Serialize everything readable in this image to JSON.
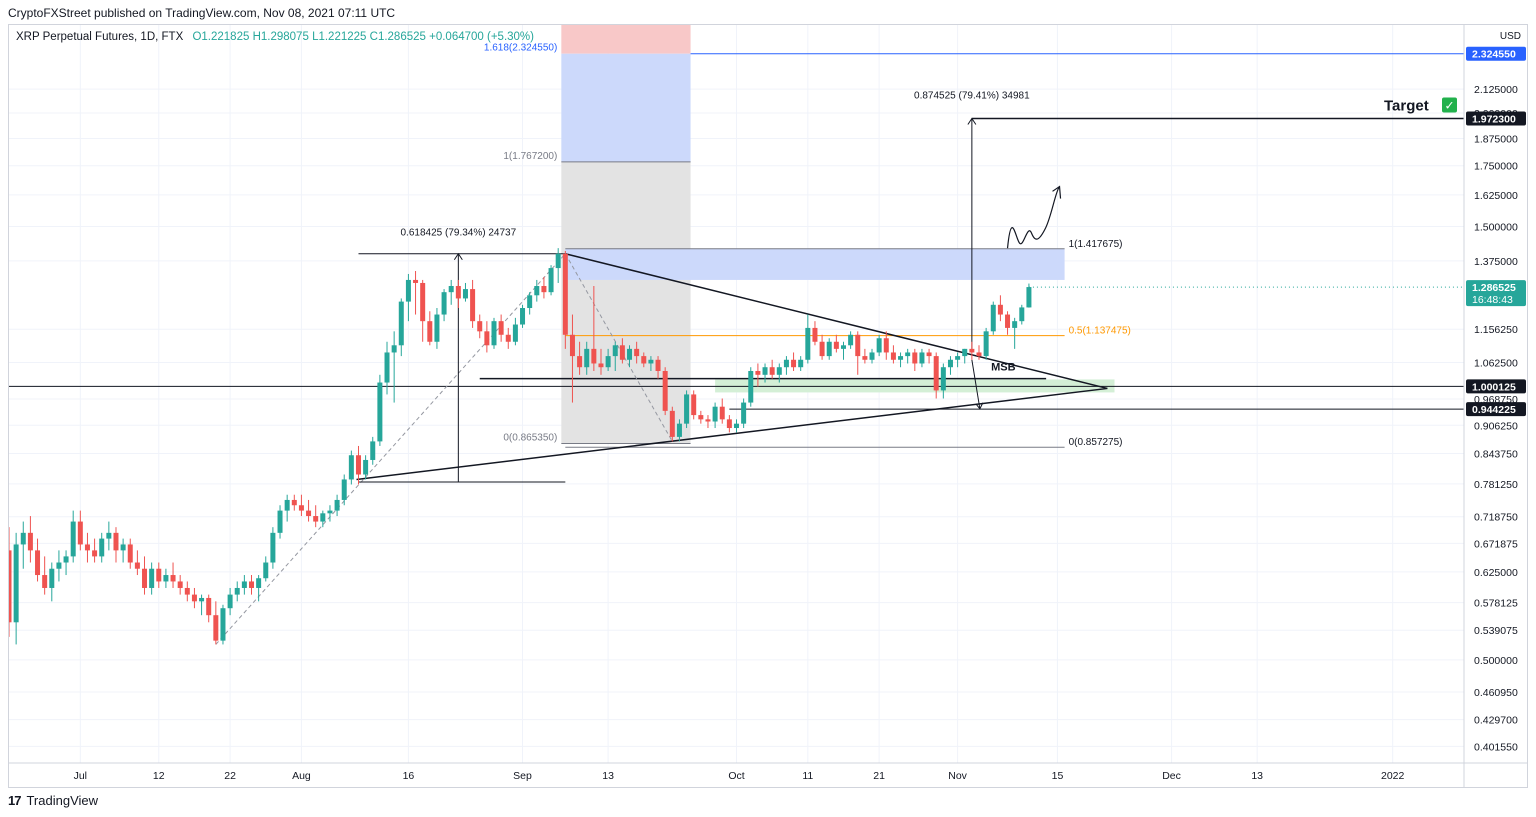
{
  "header": {
    "publisher_line": "CryptoFXStreet published on TradingView.com, Nov 08, 2021 07:11 UTC"
  },
  "legend": {
    "symbol": "XRP Perpetual Futures, 1D, FTX",
    "open": "O1.221825",
    "high": "H1.298075",
    "low": "L1.221225",
    "close": "C1.286525",
    "change": "+0.064700 (+5.30%)"
  },
  "footer": {
    "brand": "TradingView",
    "logo_mark": "17"
  },
  "chart_data": {
    "type": "candlestick",
    "currency": "USD",
    "y_scale": "log",
    "ylim": [
      0.385,
      2.5
    ],
    "x_range": [
      "2021-06-21",
      "2022-01-11"
    ],
    "x_ticks": [
      {
        "date": "2021-07-01",
        "label": "Jul"
      },
      {
        "date": "2021-07-12",
        "label": "12"
      },
      {
        "date": "2021-07-22",
        "label": "22"
      },
      {
        "date": "2021-08-01",
        "label": "Aug"
      },
      {
        "date": "2021-08-16",
        "label": "16"
      },
      {
        "date": "2021-09-01",
        "label": "Sep"
      },
      {
        "date": "2021-09-13",
        "label": "13"
      },
      {
        "date": "2021-10-01",
        "label": "Oct"
      },
      {
        "date": "2021-10-11",
        "label": "11"
      },
      {
        "date": "2021-10-21",
        "label": "21"
      },
      {
        "date": "2021-11-01",
        "label": "Nov"
      },
      {
        "date": "2021-11-15",
        "label": "15"
      },
      {
        "date": "2021-12-01",
        "label": "Dec"
      },
      {
        "date": "2021-12-13",
        "label": "13"
      },
      {
        "date": "2022-01-01",
        "label": "2022"
      }
    ],
    "y_ticks": [
      "2.125000",
      "2.000000",
      "1.875000",
      "1.750000",
      "1.625000",
      "1.500000",
      "1.375000",
      "1.156250",
      "1.062500",
      "0.968750",
      "0.906250",
      "0.843750",
      "0.781250",
      "0.718750",
      "0.671875",
      "0.625000",
      "0.578125",
      "0.539075",
      "0.500000",
      "0.460950",
      "0.429700",
      "0.401550"
    ],
    "y_tick_values": [
      2.125,
      2.0,
      1.875,
      1.75,
      1.625,
      1.5,
      1.375,
      1.15625,
      1.0625,
      0.96875,
      0.90625,
      0.84375,
      0.78125,
      0.71875,
      0.671875,
      0.625,
      0.578125,
      0.539075,
      0.5,
      0.46095,
      0.4297,
      0.40155
    ],
    "price_labels": [
      {
        "value": 2.32455,
        "label": "2.324550",
        "style": "blue"
      },
      {
        "value": 1.9723,
        "label": "1.972300",
        "style": "dark"
      },
      {
        "value": 1.000125,
        "label": "1.000125",
        "style": "dark"
      },
      {
        "value": 0.944225,
        "label": "0.944225",
        "style": "dark"
      },
      {
        "value": 1.286525,
        "label": "1.286525",
        "sublabel": "16:48:43",
        "style": "green"
      }
    ],
    "candles": {
      "start_date": "2021-06-21",
      "columns": [
        "o",
        "h",
        "l",
        "c"
      ],
      "rows": [
        [
          0.66,
          0.7,
          0.53,
          0.55
        ],
        [
          0.55,
          0.69,
          0.52,
          0.67
        ],
        [
          0.67,
          0.71,
          0.63,
          0.69
        ],
        [
          0.69,
          0.72,
          0.64,
          0.66
        ],
        [
          0.66,
          0.68,
          0.61,
          0.62
        ],
        [
          0.62,
          0.65,
          0.59,
          0.6
        ],
        [
          0.6,
          0.64,
          0.58,
          0.63
        ],
        [
          0.63,
          0.66,
          0.61,
          0.64
        ],
        [
          0.64,
          0.66,
          0.62,
          0.65
        ],
        [
          0.65,
          0.73,
          0.64,
          0.71
        ],
        [
          0.71,
          0.73,
          0.66,
          0.67
        ],
        [
          0.67,
          0.69,
          0.64,
          0.66
        ],
        [
          0.66,
          0.68,
          0.64,
          0.65
        ],
        [
          0.65,
          0.69,
          0.64,
          0.68
        ],
        [
          0.68,
          0.71,
          0.66,
          0.69
        ],
        [
          0.69,
          0.7,
          0.64,
          0.66
        ],
        [
          0.66,
          0.68,
          0.64,
          0.67
        ],
        [
          0.67,
          0.68,
          0.63,
          0.64
        ],
        [
          0.64,
          0.66,
          0.62,
          0.63
        ],
        [
          0.63,
          0.65,
          0.59,
          0.6
        ],
        [
          0.6,
          0.64,
          0.59,
          0.63
        ],
        [
          0.63,
          0.64,
          0.6,
          0.61
        ],
        [
          0.61,
          0.63,
          0.6,
          0.62
        ],
        [
          0.62,
          0.64,
          0.6,
          0.61
        ],
        [
          0.61,
          0.62,
          0.59,
          0.6
        ],
        [
          0.6,
          0.61,
          0.58,
          0.59
        ],
        [
          0.59,
          0.6,
          0.57,
          0.58
        ],
        [
          0.58,
          0.59,
          0.56,
          0.585
        ],
        [
          0.585,
          0.59,
          0.55,
          0.56
        ],
        [
          0.56,
          0.58,
          0.52,
          0.525
        ],
        [
          0.525,
          0.575,
          0.52,
          0.57
        ],
        [
          0.57,
          0.6,
          0.56,
          0.59
        ],
        [
          0.59,
          0.61,
          0.58,
          0.6
        ],
        [
          0.6,
          0.62,
          0.59,
          0.61
        ],
        [
          0.61,
          0.62,
          0.59,
          0.6
        ],
        [
          0.6,
          0.62,
          0.58,
          0.615
        ],
        [
          0.615,
          0.65,
          0.61,
          0.64
        ],
        [
          0.64,
          0.7,
          0.63,
          0.69
        ],
        [
          0.69,
          0.74,
          0.68,
          0.73
        ],
        [
          0.73,
          0.76,
          0.71,
          0.75
        ],
        [
          0.75,
          0.76,
          0.73,
          0.74
        ],
        [
          0.74,
          0.76,
          0.72,
          0.73
        ],
        [
          0.73,
          0.75,
          0.71,
          0.72
        ],
        [
          0.72,
          0.74,
          0.7,
          0.71
        ],
        [
          0.71,
          0.73,
          0.7,
          0.725
        ],
        [
          0.725,
          0.74,
          0.71,
          0.73
        ],
        [
          0.73,
          0.76,
          0.72,
          0.75
        ],
        [
          0.75,
          0.8,
          0.74,
          0.79
        ],
        [
          0.79,
          0.85,
          0.78,
          0.84
        ],
        [
          0.84,
          0.86,
          0.78,
          0.8
        ],
        [
          0.8,
          0.84,
          0.79,
          0.83
        ],
        [
          0.83,
          0.88,
          0.82,
          0.87
        ],
        [
          0.87,
          1.03,
          0.86,
          1.01
        ],
        [
          1.01,
          1.12,
          0.98,
          1.09
        ],
        [
          1.09,
          1.15,
          0.96,
          1.11
        ],
        [
          1.11,
          1.25,
          1.08,
          1.24
        ],
        [
          1.24,
          1.33,
          1.18,
          1.31
        ],
        [
          1.31,
          1.34,
          1.2,
          1.3
        ],
        [
          1.3,
          1.31,
          1.12,
          1.18
        ],
        [
          1.18,
          1.21,
          1.11,
          1.12
        ],
        [
          1.12,
          1.22,
          1.1,
          1.2
        ],
        [
          1.2,
          1.28,
          1.18,
          1.27
        ],
        [
          1.27,
          1.31,
          1.23,
          1.29
        ],
        [
          1.29,
          1.31,
          1.22,
          1.25
        ],
        [
          1.25,
          1.3,
          1.24,
          1.28
        ],
        [
          1.28,
          1.31,
          1.16,
          1.18
        ],
        [
          1.18,
          1.2,
          1.13,
          1.15
        ],
        [
          1.15,
          1.18,
          1.09,
          1.11
        ],
        [
          1.11,
          1.19,
          1.1,
          1.18
        ],
        [
          1.18,
          1.2,
          1.12,
          1.14
        ],
        [
          1.14,
          1.16,
          1.1,
          1.12
        ],
        [
          1.12,
          1.19,
          1.11,
          1.17
        ],
        [
          1.17,
          1.23,
          1.16,
          1.22
        ],
        [
          1.22,
          1.27,
          1.2,
          1.26
        ],
        [
          1.26,
          1.31,
          1.24,
          1.29
        ],
        [
          1.29,
          1.32,
          1.25,
          1.27
        ],
        [
          1.27,
          1.36,
          1.26,
          1.35
        ],
        [
          1.35,
          1.42,
          1.3,
          1.4
        ],
        [
          1.4,
          1.41,
          1.1,
          1.14
        ],
        [
          1.14,
          1.2,
          0.96,
          1.08
        ],
        [
          1.08,
          1.12,
          1.03,
          1.05
        ],
        [
          1.05,
          1.12,
          1.03,
          1.1
        ],
        [
          1.1,
          1.29,
          1.04,
          1.06
        ],
        [
          1.06,
          1.1,
          1.03,
          1.05
        ],
        [
          1.05,
          1.1,
          1.04,
          1.08
        ],
        [
          1.08,
          1.12,
          1.04,
          1.11
        ],
        [
          1.11,
          1.13,
          1.06,
          1.07
        ],
        [
          1.07,
          1.11,
          1.05,
          1.1
        ],
        [
          1.1,
          1.12,
          1.06,
          1.08
        ],
        [
          1.08,
          1.09,
          1.05,
          1.06
        ],
        [
          1.06,
          1.08,
          1.04,
          1.07
        ],
        [
          1.07,
          1.08,
          1.02,
          1.04
        ],
        [
          1.04,
          1.05,
          0.93,
          0.94
        ],
        [
          0.94,
          0.95,
          0.87,
          0.88
        ],
        [
          0.88,
          0.92,
          0.87,
          0.91
        ],
        [
          0.91,
          0.99,
          0.9,
          0.98
        ],
        [
          0.98,
          0.99,
          0.92,
          0.93
        ],
        [
          0.93,
          0.94,
          0.91,
          0.92
        ],
        [
          0.92,
          0.93,
          0.9,
          0.915
        ],
        [
          0.915,
          0.96,
          0.9,
          0.95
        ],
        [
          0.95,
          0.97,
          0.91,
          0.92
        ],
        [
          0.92,
          0.93,
          0.89,
          0.9
        ],
        [
          0.9,
          0.92,
          0.89,
          0.91
        ],
        [
          0.91,
          0.97,
          0.9,
          0.96
        ],
        [
          0.96,
          1.05,
          0.95,
          1.04
        ],
        [
          1.04,
          1.06,
          1.0,
          1.03
        ],
        [
          1.03,
          1.06,
          1.01,
          1.05
        ],
        [
          1.05,
          1.07,
          1.02,
          1.03
        ],
        [
          1.03,
          1.06,
          1.01,
          1.05
        ],
        [
          1.05,
          1.08,
          1.03,
          1.07
        ],
        [
          1.07,
          1.09,
          1.04,
          1.05
        ],
        [
          1.05,
          1.08,
          1.04,
          1.07
        ],
        [
          1.07,
          1.2,
          1.06,
          1.16
        ],
        [
          1.16,
          1.18,
          1.11,
          1.12
        ],
        [
          1.12,
          1.14,
          1.07,
          1.08
        ],
        [
          1.08,
          1.13,
          1.07,
          1.12
        ],
        [
          1.12,
          1.14,
          1.09,
          1.1
        ],
        [
          1.1,
          1.12,
          1.07,
          1.11
        ],
        [
          1.11,
          1.15,
          1.1,
          1.14
        ],
        [
          1.14,
          1.15,
          1.03,
          1.08
        ],
        [
          1.08,
          1.1,
          1.06,
          1.07
        ],
        [
          1.07,
          1.1,
          1.06,
          1.09
        ],
        [
          1.09,
          1.14,
          1.08,
          1.13
        ],
        [
          1.13,
          1.15,
          1.07,
          1.09
        ],
        [
          1.09,
          1.11,
          1.06,
          1.07
        ],
        [
          1.07,
          1.09,
          1.05,
          1.08
        ],
        [
          1.08,
          1.1,
          1.06,
          1.09
        ],
        [
          1.09,
          1.1,
          1.04,
          1.06
        ],
        [
          1.06,
          1.1,
          1.05,
          1.09
        ],
        [
          1.09,
          1.1,
          1.06,
          1.08
        ],
        [
          1.08,
          1.09,
          0.97,
          0.99
        ],
        [
          0.99,
          1.06,
          0.97,
          1.05
        ],
        [
          1.05,
          1.08,
          1.03,
          1.07
        ],
        [
          1.07,
          1.09,
          1.05,
          1.08
        ],
        [
          1.08,
          1.1,
          1.06,
          1.1
        ],
        [
          1.1,
          1.12,
          1.07,
          1.09
        ],
        [
          1.09,
          1.11,
          1.07,
          1.08
        ],
        [
          1.08,
          1.16,
          1.07,
          1.15
        ],
        [
          1.15,
          1.24,
          1.14,
          1.23
        ],
        [
          1.23,
          1.26,
          1.18,
          1.2
        ],
        [
          1.2,
          1.21,
          1.14,
          1.16
        ],
        [
          1.16,
          1.19,
          1.1,
          1.18
        ],
        [
          1.18,
          1.23,
          1.17,
          1.221825
        ],
        [
          1.221825,
          1.298075,
          1.221225,
          1.286525
        ]
      ]
    },
    "annotations": {
      "fib_upper_box": {
        "label_0": "0(0.865350)",
        "label_1": "1(1.767200)",
        "label_1618": "1.618(2.324550)",
        "v0": 0.86535,
        "v1": 1.7672,
        "v1618": 2.32455
      },
      "fib_right": {
        "label_1": "1(1.417675)",
        "label_05": "0.5(1.137475)",
        "label_0": "0(0.857275)",
        "v1": 1.417675,
        "v05": 1.137475,
        "v0": 0.857275
      },
      "measure_left_label": "0.618425 (79.34%) 24737",
      "measure_right_label": "0.874525 (79.41%) 34981",
      "target_label": "Target",
      "target_check": "✓",
      "msb_label": "MSB",
      "msb_level": 1.02
    }
  }
}
